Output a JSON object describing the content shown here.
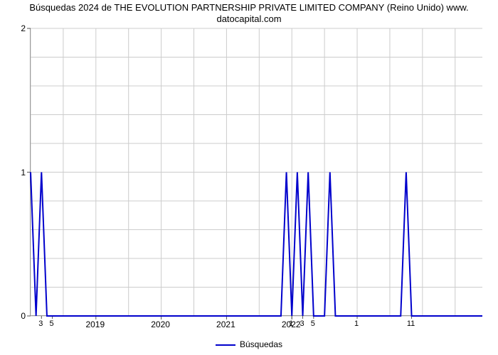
{
  "chart": {
    "type": "line",
    "title_line1": "Búsquedas 2024 de THE EVOLUTION PARTNERSHIP PRIVATE LIMITED COMPANY (Reino Unido) www.",
    "title_line2": "datocapital.com",
    "background_color": "#ffffff",
    "grid_color": "#cccccc",
    "axis_color": "#666666",
    "tick_color": "#555555",
    "title_color": "#000000",
    "label_color": "#000000",
    "title_fontsize": 13,
    "label_fontsize": 12,
    "minor_label_fontsize": 11,
    "line_color": "#0000cc",
    "line_width": 2,
    "ylim": [
      0,
      2
    ],
    "yticks": [
      0,
      1,
      2
    ],
    "x_start_month": "2018-01",
    "x_end_month": "2024-12",
    "x_year_labels": [
      {
        "label": "2019",
        "month_index": 12
      },
      {
        "label": "2020",
        "month_index": 24
      },
      {
        "label": "2021",
        "month_index": 36
      },
      {
        "label": "2022",
        "month_index": 48
      }
    ],
    "x_minor_labels": [
      {
        "label": "3",
        "month_index": 2
      },
      {
        "label": "5",
        "month_index": 4
      },
      {
        "label": "1",
        "month_index": 48
      },
      {
        "label": "3",
        "month_index": 50
      },
      {
        "label": "5",
        "month_index": 52
      },
      {
        "label": "1",
        "month_index": 60
      },
      {
        "label": "11",
        "month_index": 70
      }
    ],
    "x_gridlines_month_index": [
      0,
      6,
      12,
      18,
      24,
      30,
      36,
      42,
      48,
      54,
      60,
      66,
      72,
      78
    ],
    "series": {
      "label": "Búsquedas",
      "points": [
        {
          "mi": 0,
          "v": 1
        },
        {
          "mi": 1,
          "v": 0
        },
        {
          "mi": 2,
          "v": 1
        },
        {
          "mi": 3,
          "v": 0
        },
        {
          "mi": 46,
          "v": 0
        },
        {
          "mi": 47,
          "v": 1
        },
        {
          "mi": 48,
          "v": 0
        },
        {
          "mi": 49,
          "v": 1
        },
        {
          "mi": 50,
          "v": 0
        },
        {
          "mi": 51,
          "v": 1
        },
        {
          "mi": 52,
          "v": 0
        },
        {
          "mi": 54,
          "v": 0
        },
        {
          "mi": 55,
          "v": 1
        },
        {
          "mi": 56,
          "v": 0
        },
        {
          "mi": 68,
          "v": 0
        },
        {
          "mi": 69,
          "v": 1
        },
        {
          "mi": 70,
          "v": 0
        }
      ]
    },
    "legend_label": "Búsquedas"
  }
}
